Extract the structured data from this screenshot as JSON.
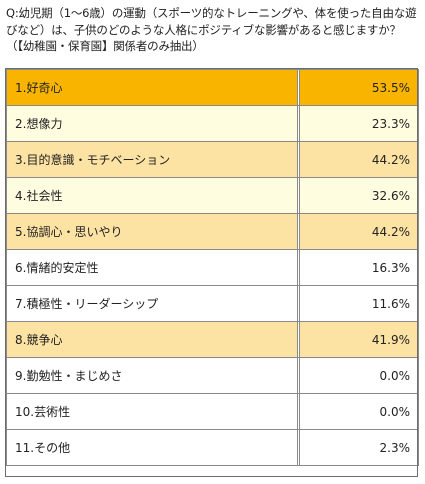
{
  "question": "Q:幼児期（1〜6歳）の運動（スポーツ的なトレーニングや、体を使った自由な遊びなど）は、子供のどのような人格にポジティブな影響があると感じますか？（【幼稚園・保育園】関係者のみ抽出）",
  "colors": {
    "top": "#f9b400",
    "high": "#fde3a3",
    "light": "#fffde0",
    "plain": "#ffffff"
  },
  "chart_data": {
    "type": "table",
    "categories": [
      "1.好奇心",
      "2.想像力",
      "3.目的意識・モチベーション",
      "4.社会性",
      "5.協調心・思いやり",
      "6.情緒的安定性",
      "7.積極性・リーダーシップ",
      "8.競争心",
      "9.勤勉性・まじめさ",
      "10.芸術性",
      "11.その他"
    ],
    "values": [
      "53.5%",
      "23.3%",
      "44.2%",
      "32.6%",
      "44.2%",
      "16.3%",
      "11.6%",
      "41.9%",
      "0.0%",
      "0.0%",
      "2.3%"
    ],
    "row_highlight": [
      "top",
      "light",
      "high",
      "light",
      "high",
      "plain",
      "plain",
      "high",
      "plain",
      "plain",
      "plain"
    ]
  }
}
